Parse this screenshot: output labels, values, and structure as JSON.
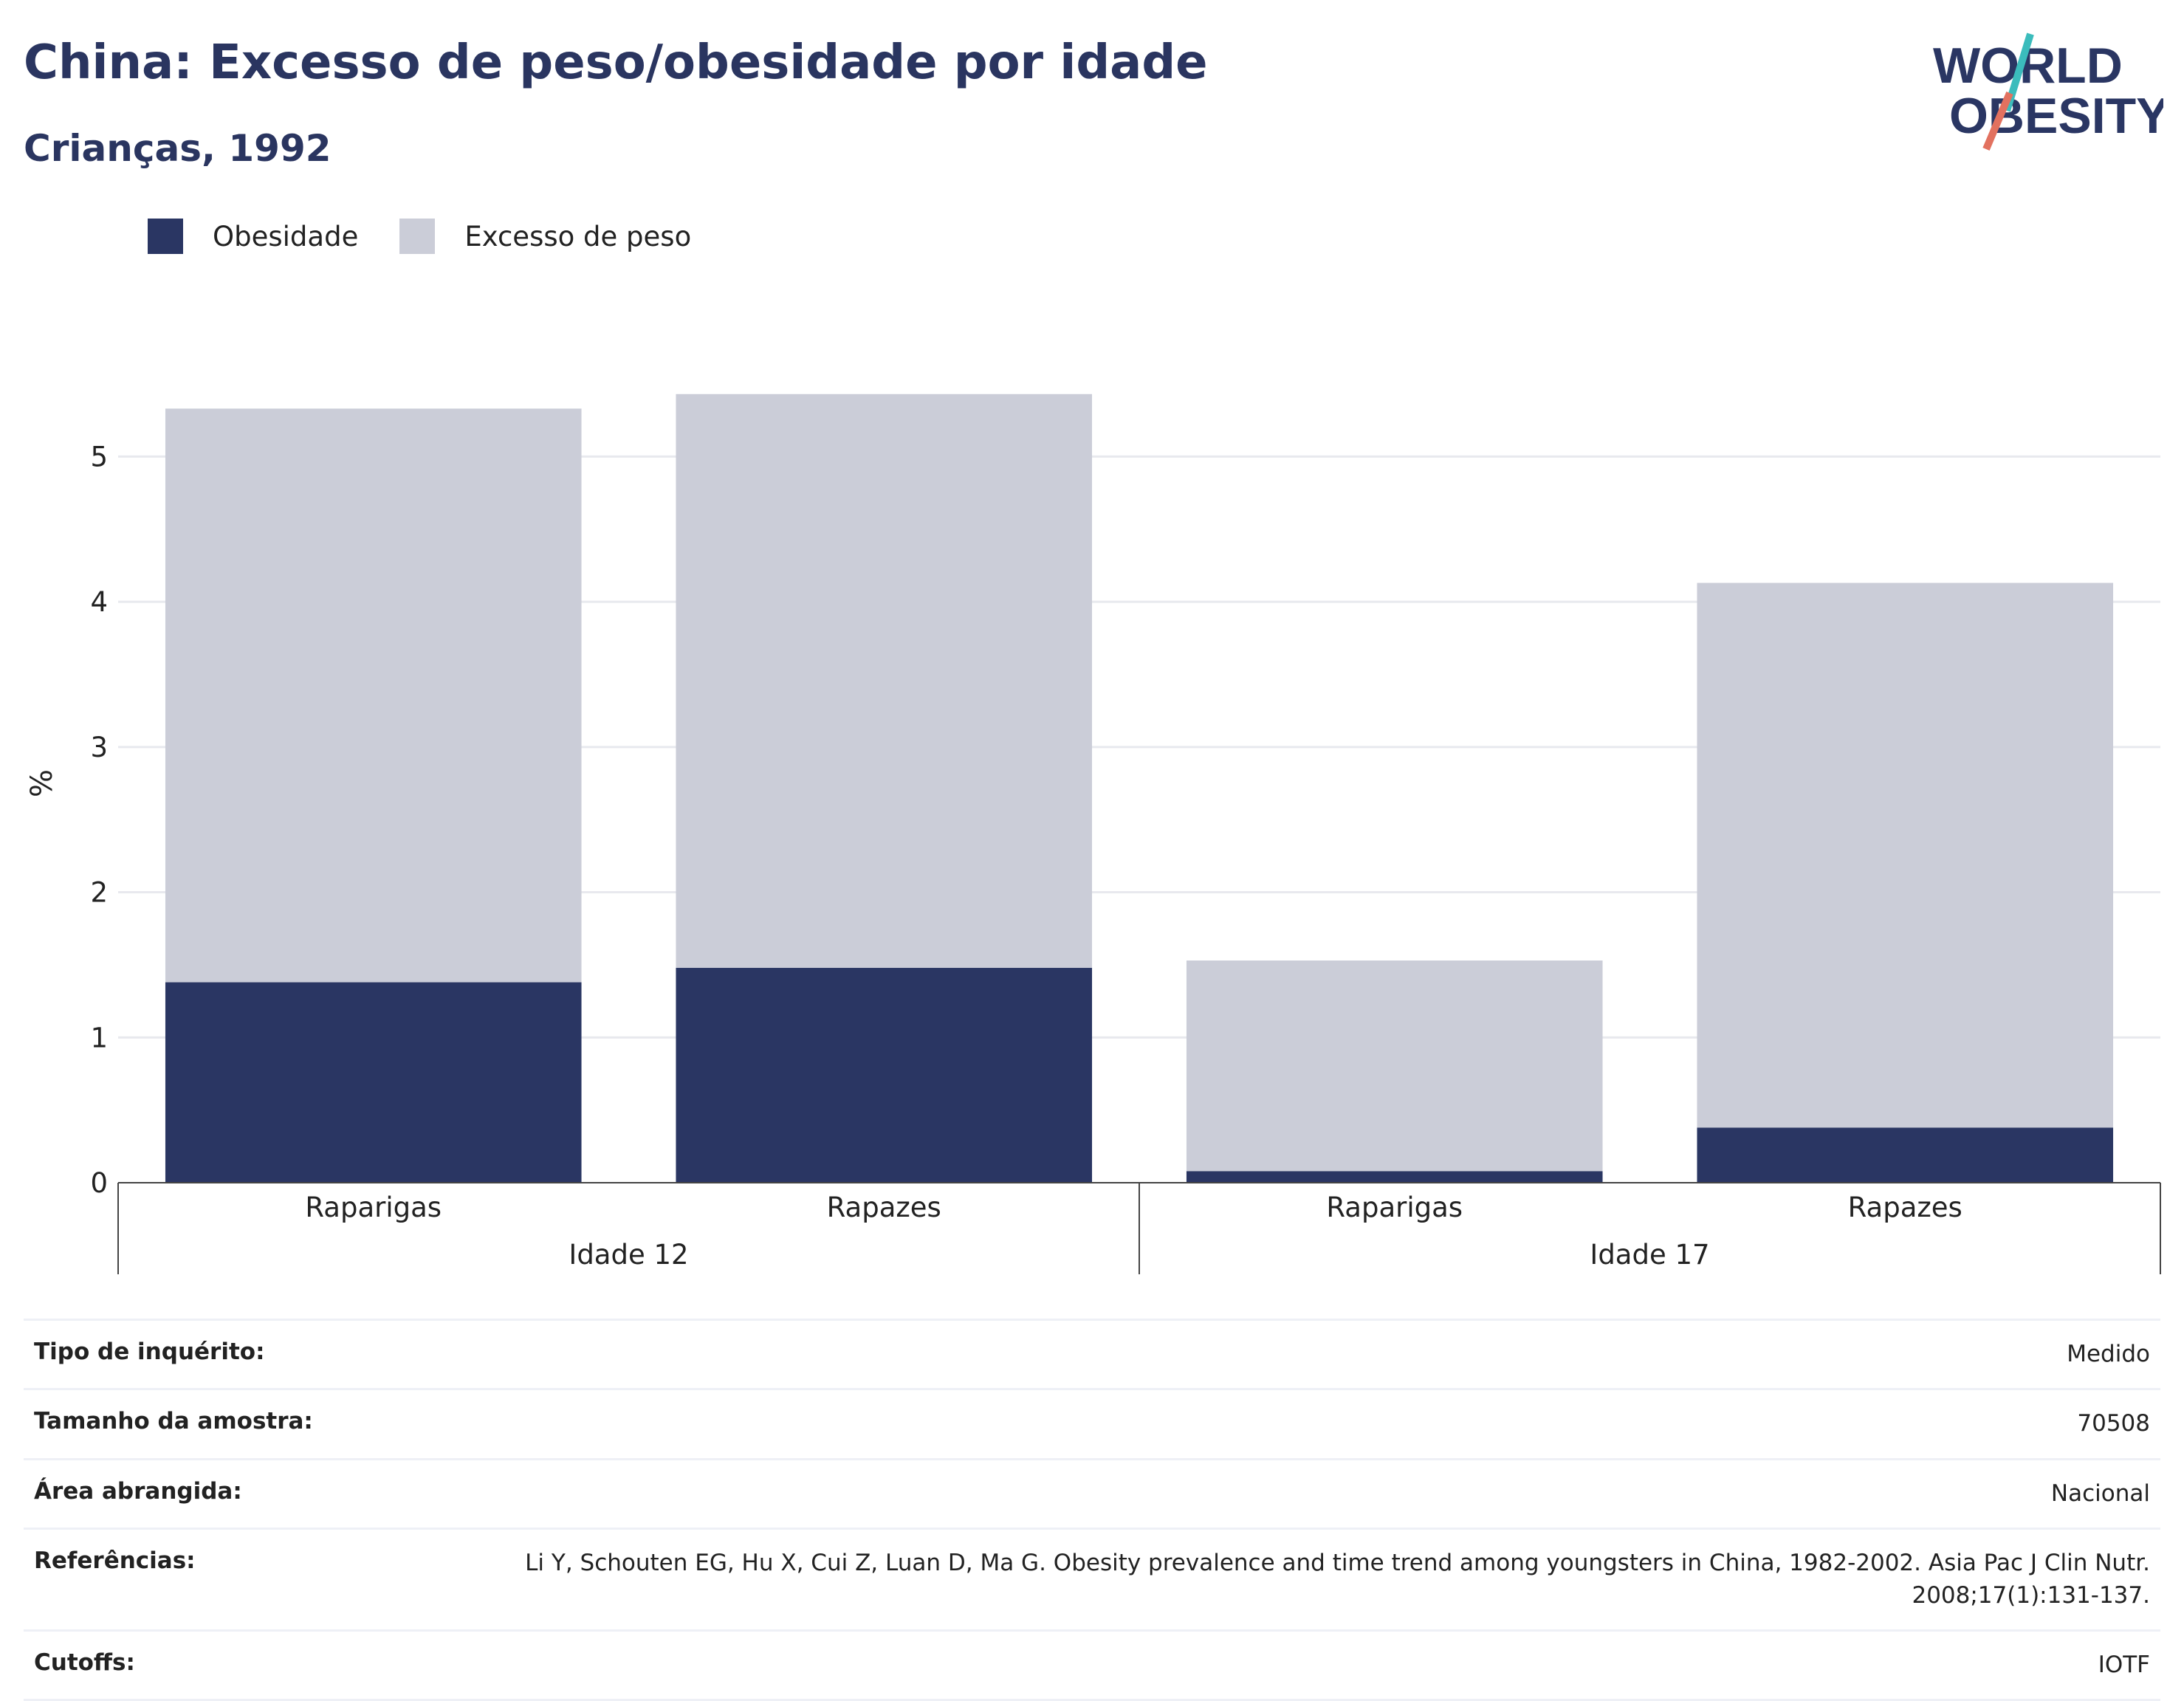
{
  "header": {
    "title": "China: Excesso de peso/obesidade por idade",
    "subtitle": "Crianças, 1992",
    "logo_line1": "WORLD",
    "logo_line2": "OBESITY"
  },
  "colors": {
    "navy": "#2a3663",
    "grey": "#cbcdd8",
    "accent_teal": "#3bbcbc",
    "accent_coral": "#e2715f"
  },
  "legend": [
    {
      "label": "Obesidade",
      "color": "#2a3663"
    },
    {
      "label": "Excesso de peso",
      "color": "#cbcdd8"
    }
  ],
  "chart_data": {
    "type": "bar",
    "stacked": true,
    "ylabel": "%",
    "ylim": [
      0,
      5.5
    ],
    "yticks": [
      0,
      1,
      2,
      3,
      4,
      5
    ],
    "grid": true,
    "legend_position": "top-left",
    "categories": [
      "Raparigas",
      "Rapazes",
      "Raparigas",
      "Rapazes"
    ],
    "groups": [
      {
        "label": "Idade 12",
        "categories": [
          "Raparigas",
          "Rapazes"
        ]
      },
      {
        "label": "Idade 17",
        "categories": [
          "Raparigas",
          "Rapazes"
        ]
      }
    ],
    "series": [
      {
        "name": "Obesidade",
        "values": [
          1.38,
          1.48,
          0.08,
          0.38
        ],
        "color": "#2a3663"
      },
      {
        "name": "Excesso de peso",
        "values": [
          3.95,
          3.95,
          1.45,
          3.75
        ],
        "color": "#cbcdd8"
      }
    ]
  },
  "meta": [
    {
      "label": "Tipo de inquérito:",
      "value": "Medido"
    },
    {
      "label": "Tamanho da amostra:",
      "value": "70508"
    },
    {
      "label": "Área abrangida:",
      "value": "Nacional"
    },
    {
      "label": "Referências:",
      "value": "Li Y, Schouten EG, Hu X, Cui Z, Luan D, Ma G. Obesity prevalence and time trend among youngsters in China, 1982-2002. Asia Pac J Clin Nutr. 2008;17(1):131-137."
    },
    {
      "label": "Cutoffs:",
      "value": "IOTF"
    }
  ]
}
